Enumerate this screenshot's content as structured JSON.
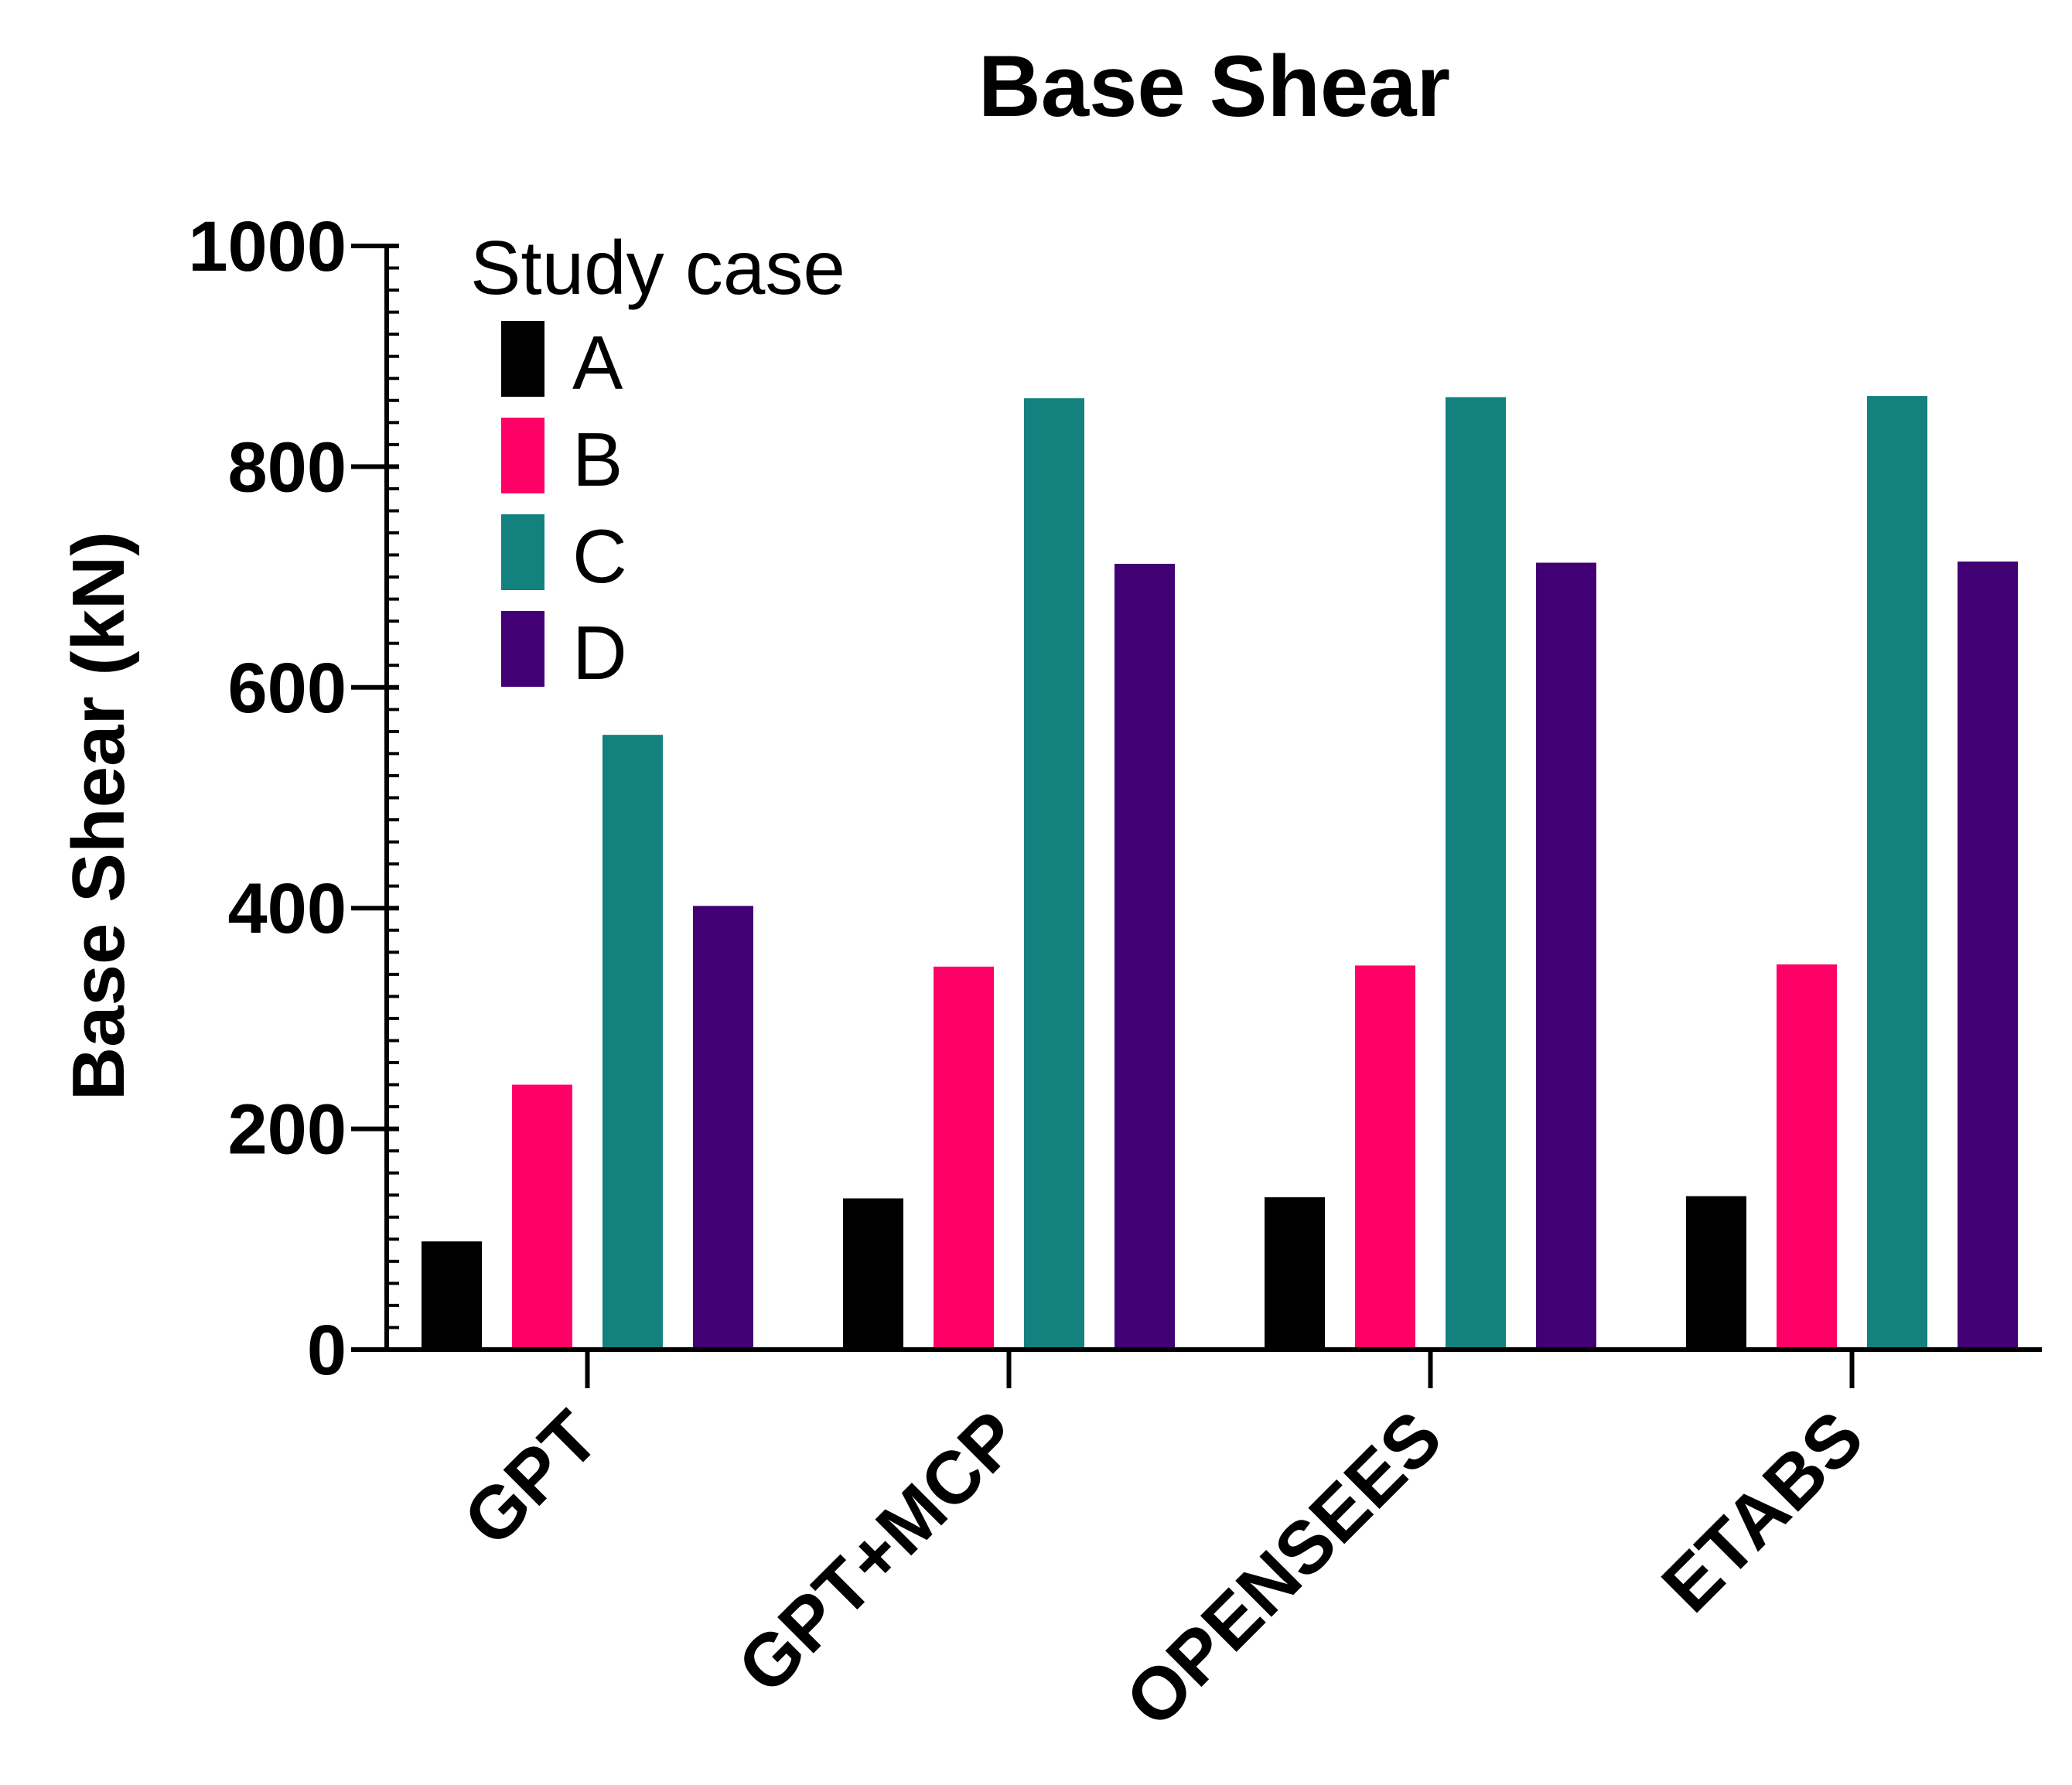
{
  "chart_data": {
    "type": "bar",
    "title": "Base Shear",
    "xlabel": "",
    "ylabel": "Base Shear (kN)",
    "ylim": [
      0,
      1000
    ],
    "yticks": [
      0,
      200,
      400,
      600,
      800,
      1000
    ],
    "categories": [
      "GPT",
      "GPT+MCP",
      "OPENSEES",
      "ETABS"
    ],
    "legend_title": "Study case",
    "legend_position": "top-left",
    "series": [
      {
        "name": "A",
        "color": "#000000",
        "values": [
          98,
          137,
          138,
          139
        ]
      },
      {
        "name": "B",
        "color": "#ff0066",
        "values": [
          240,
          347,
          348,
          349
        ]
      },
      {
        "name": "C",
        "color": "#13817d",
        "values": [
          557,
          862,
          863,
          864
        ]
      },
      {
        "name": "D",
        "color": "#410074",
        "values": [
          402,
          712,
          713,
          714
        ]
      }
    ]
  }
}
